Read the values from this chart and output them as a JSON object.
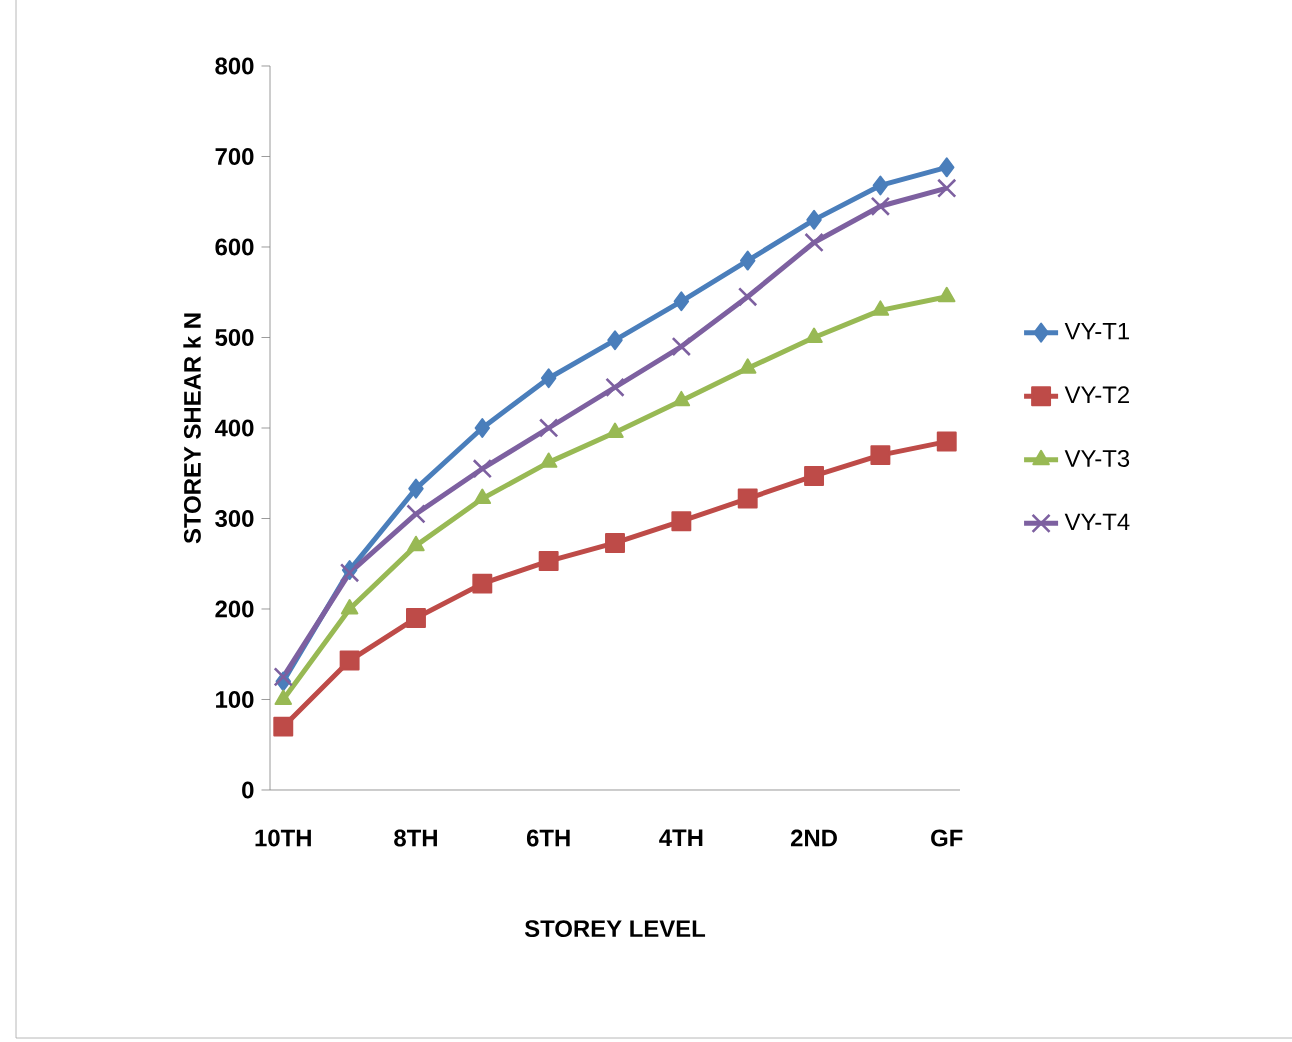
{
  "chart_data": {
    "type": "line",
    "xlabel": "STOREY LEVEL",
    "ylabel": "STOREY SHEAR k N",
    "categories": [
      "10TH",
      null,
      "8TH",
      null,
      "6TH",
      null,
      "4TH",
      null,
      "2ND",
      null,
      "GF"
    ],
    "ylim": [
      0,
      800
    ],
    "yticks": [
      0,
      100,
      200,
      300,
      400,
      500,
      600,
      700,
      800
    ],
    "grid": false,
    "legend": "right",
    "line_style": "solid",
    "series": [
      {
        "name": "VY-T1",
        "color": "#4a7ebb",
        "marker": "diamond",
        "values": [
          120,
          243,
          333,
          400,
          455,
          497,
          540,
          585,
          630,
          668,
          688
        ]
      },
      {
        "name": "VY-T2",
        "color": "#be4b48",
        "marker": "square",
        "values": [
          70,
          143,
          190,
          228,
          253,
          273,
          297,
          322,
          347,
          370,
          385
        ]
      },
      {
        "name": "VY-T3",
        "color": "#98b954",
        "marker": "triangle",
        "values": [
          100,
          200,
          270,
          322,
          362,
          395,
          430,
          466,
          500,
          530,
          545
        ]
      },
      {
        "name": "VY-T4",
        "color": "#7d60a0",
        "marker": "cross",
        "values": [
          125,
          240,
          305,
          355,
          400,
          445,
          490,
          545,
          605,
          645,
          665
        ]
      }
    ]
  }
}
